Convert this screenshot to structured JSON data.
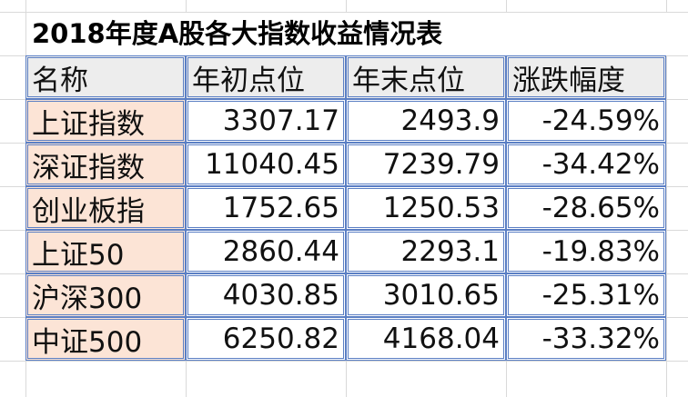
{
  "title": "2018年度A股各大指数收益情况表",
  "headers": [
    "名称",
    "年初点位",
    "年末点位",
    "涨跌幅度"
  ],
  "rows": [
    [
      "上证指数",
      "3307.17",
      "2493.9",
      "-24.59%"
    ],
    [
      "深证指数",
      "11040.45",
      "7239.79",
      "-34.42%"
    ],
    [
      "创业板指",
      "1752.65",
      "1250.53",
      "-28.65%"
    ],
    [
      "上证50",
      "2860.44",
      "2293.1",
      "-19.83%"
    ],
    [
      "沪深300",
      "4030.85",
      "3010.65",
      "-25.31%"
    ],
    [
      "中证500",
      "6250.82",
      "4168.04",
      "-33.32%"
    ]
  ],
  "colors": {
    "header_bg": "#ededed",
    "name_bg": "#fce4d6",
    "border": "#5b7fc4"
  }
}
